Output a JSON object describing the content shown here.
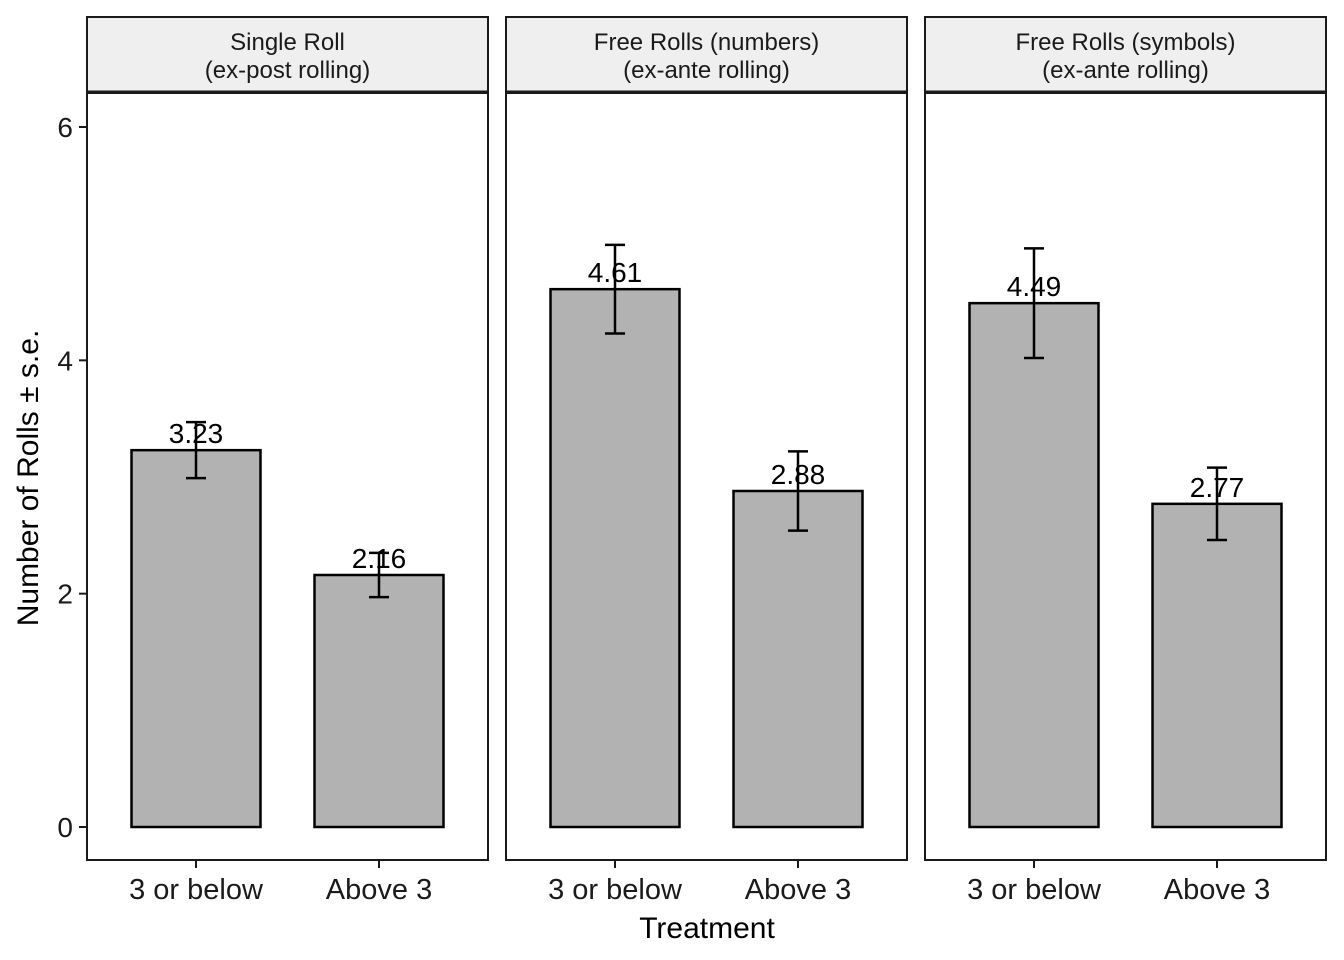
{
  "chart_data": {
    "type": "bar",
    "xlabel": "Treatment",
    "ylabel": "Number of Rolls ± s.e.",
    "ylim": [
      0,
      6.3
    ],
    "yticks": [
      0,
      2,
      4,
      6
    ],
    "grid": false,
    "categories": [
      "3 or below",
      "Above 3"
    ],
    "facets": [
      {
        "title_line1": "Single Roll",
        "title_line2": "(ex-post rolling)",
        "values": [
          3.23,
          2.16
        ],
        "labels": [
          "3.23",
          "2.16"
        ],
        "se": [
          0.24,
          0.19
        ]
      },
      {
        "title_line1": "Free Rolls (numbers)",
        "title_line2": "(ex-ante rolling)",
        "values": [
          4.61,
          2.88
        ],
        "labels": [
          "4.61",
          "2.88"
        ],
        "se": [
          0.38,
          0.34
        ]
      },
      {
        "title_line1": "Free Rolls (symbols)",
        "title_line2": "(ex-ante rolling)",
        "values": [
          4.49,
          2.77
        ],
        "labels": [
          "4.49",
          "2.77"
        ],
        "se": [
          0.47,
          0.31
        ]
      }
    ],
    "colors": {
      "bar_fill": "#b2b2b2",
      "bar_stroke": "#000000",
      "strip_fill": "#efefef"
    }
  }
}
